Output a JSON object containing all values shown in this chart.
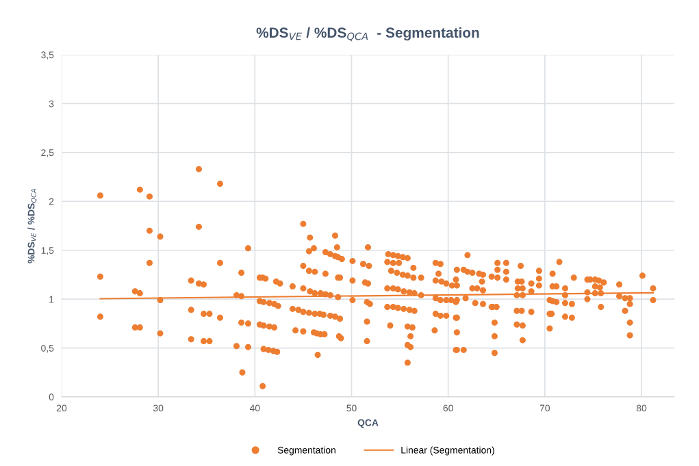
{
  "chart_data": {
    "type": "scatter",
    "title": "%DS$_{VE}$ / %DS$_{QCA}$  - Segmentation",
    "xlabel": "QCA",
    "ylabel": "%DS$_{VE}$ / %DS$_{QCA}$",
    "xlim": [
      20,
      83.4
    ],
    "xticks": [
      20,
      30,
      40,
      50,
      60,
      70,
      80
    ],
    "ylim": [
      0,
      3.5
    ],
    "yticks": [
      0,
      {
        "value": 0.5,
        "label": "0,5"
      },
      1,
      {
        "value": 1.5,
        "label": "1,5"
      },
      2,
      {
        "value": 2.5,
        "label": "2,5"
      },
      3,
      {
        "value": 3.5,
        "label": "3,5"
      }
    ],
    "grid": true,
    "legend": "bottom",
    "series": [
      {
        "name": "Segmentation",
        "marker": "circle",
        "color": "#ed7d31",
        "x": [
          24.0,
          24.0,
          24.0,
          27.6,
          28.1,
          27.6,
          28.1,
          28.1,
          29.1,
          29.1,
          29.1,
          30.2,
          30.2,
          30.2,
          33.4,
          33.4,
          33.4,
          34.2,
          34.2,
          34.2,
          34.7,
          34.7,
          34.7,
          35.3,
          35.3,
          36.4,
          36.4,
          36.4,
          38.1,
          38.1,
          38.6,
          38.6,
          38.6,
          38.7,
          39.3,
          39.3,
          39.3,
          40.5,
          40.8,
          41.1,
          40.5,
          40.9,
          41.5,
          42.0,
          42.4,
          40.5,
          40.9,
          41.5,
          42.0,
          40.9,
          41.4,
          41.9,
          42.3,
          40.8,
          42.2,
          42.6,
          43.9,
          43.9,
          44.5,
          45.0,
          45.0,
          45.0,
          45.0,
          44.2,
          45.0,
          45.7,
          46.1,
          45.6,
          45.6,
          46.2,
          45.7,
          46.2,
          45.6,
          46.2,
          46.7,
          47.1,
          46.1,
          46.4,
          46.8,
          47.2,
          46.5,
          47.3,
          47.8,
          48.3,
          48.6,
          49.0,
          47.3,
          48.3,
          48.5,
          46.8,
          47.3,
          47.8,
          47.8,
          48.3,
          48.8,
          48.6,
          48.8,
          48.6,
          48.7,
          48.9,
          50.1,
          50.1,
          50.1,
          51.2,
          51.4,
          51.7,
          51.6,
          51.9,
          51.6,
          51.6,
          51.7,
          51.8,
          53.8,
          54.3,
          54.8,
          55.3,
          55.8,
          53.7,
          54.3,
          54.9,
          54.1,
          54.7,
          55.3,
          55.8,
          56.4,
          56.4,
          57.2,
          53.7,
          54.3,
          54.8,
          55.4,
          56.0,
          56.5,
          53.7,
          54.3,
          54.8,
          55.4,
          56.0,
          56.5,
          54.0,
          55.8,
          56.3,
          56.1,
          56.1,
          55.8,
          55.8,
          57.2,
          58.7,
          59.2,
          59.0,
          58.7,
          59.3,
          59.8,
          58.7,
          59.2,
          59.8,
          58.7,
          59.2,
          59.8,
          58.6,
          60.8,
          60.8,
          60.8,
          60.8,
          62.0,
          60.9,
          61.6,
          62.0,
          62.5,
          63.2,
          63.6,
          64.5,
          62.5,
          63.0,
          63.5,
          63.6,
          60.4,
          60.9,
          60.3,
          60.9,
          60.9,
          60.9,
          60.9,
          61.6,
          62.8,
          63.6,
          64.5,
          61.8,
          65.1,
          65.1,
          65.1,
          66.0,
          66.0,
          66.0,
          67.5,
          67.2,
          67.6,
          67.2,
          67.7,
          67.1,
          67.7,
          68.6,
          68.6,
          69.4,
          69.4,
          69.4,
          70.8,
          70.8,
          71.2,
          71.5,
          72.1,
          72.1,
          73.0,
          74.4,
          74.7,
          74.4,
          75.2,
          75.6,
          76.1,
          75.2,
          75.7,
          75.2,
          75.8,
          77.7,
          80.1,
          81.2,
          64.6,
          65.0,
          64.8,
          64.8,
          64.8,
          67.1,
          67.6,
          67.1,
          67.7,
          67.7,
          68.6,
          70.5,
          70.8,
          71.2,
          70.5,
          70.7,
          70.5,
          72.1,
          72.8,
          72.1,
          72.8,
          74.4,
          75.8,
          77.7,
          78.3,
          78.8,
          78.8,
          78.3,
          78.8,
          78.8,
          81.2
        ],
        "values": [
          2.06,
          1.23,
          0.82,
          1.08,
          1.06,
          0.71,
          0.71,
          2.12,
          2.05,
          1.7,
          1.37,
          1.64,
          0.99,
          0.65,
          1.19,
          0.89,
          0.59,
          2.33,
          1.74,
          1.16,
          1.15,
          0.85,
          0.57,
          0.85,
          0.57,
          2.18,
          1.37,
          0.81,
          1.04,
          0.52,
          1.27,
          1.03,
          0.76,
          0.25,
          1.52,
          0.75,
          0.51,
          1.22,
          1.22,
          1.21,
          0.98,
          0.97,
          0.96,
          0.95,
          0.93,
          0.74,
          0.73,
          0.72,
          0.71,
          0.49,
          0.48,
          0.47,
          0.46,
          0.11,
          1.18,
          1.16,
          1.13,
          0.9,
          0.89,
          1.34,
          1.11,
          0.87,
          0.67,
          0.68,
          1.77,
          1.63,
          1.52,
          1.49,
          1.29,
          1.28,
          1.08,
          1.06,
          0.86,
          0.85,
          0.85,
          0.84,
          0.66,
          0.65,
          0.64,
          0.64,
          0.43,
          1.48,
          1.46,
          1.44,
          1.43,
          1.41,
          1.26,
          1.65,
          1.53,
          1.06,
          1.05,
          1.04,
          0.83,
          0.82,
          0.8,
          1.22,
          1.22,
          1.02,
          0.62,
          0.6,
          1.39,
          1.19,
          0.99,
          1.36,
          1.17,
          1.16,
          0.97,
          0.95,
          0.77,
          0.57,
          1.53,
          1.34,
          1.46,
          1.45,
          1.44,
          1.43,
          1.42,
          1.38,
          1.37,
          1.37,
          1.29,
          1.27,
          1.25,
          1.24,
          1.22,
          1.32,
          1.22,
          1.11,
          1.11,
          1.1,
          1.08,
          1.07,
          1.06,
          0.92,
          0.92,
          0.91,
          0.9,
          0.89,
          0.88,
          0.73,
          0.72,
          0.71,
          0.62,
          0.51,
          0.53,
          0.35,
          1.04,
          1.37,
          1.36,
          1.26,
          1.19,
          1.18,
          1.16,
          1.01,
          0.99,
          0.99,
          0.85,
          0.83,
          0.83,
          0.68,
          1.2,
          0.97,
          0.81,
          0.48,
          1.45,
          1.3,
          1.3,
          1.28,
          1.27,
          1.26,
          1.25,
          1.23,
          1.11,
          1.11,
          1.18,
          1.09,
          1.14,
          1.14,
          0.99,
          0.99,
          0.81,
          0.66,
          0.48,
          0.48,
          0.96,
          0.95,
          0.92,
          1.01,
          1.37,
          1.3,
          1.22,
          1.37,
          1.28,
          1.2,
          1.34,
          1.18,
          1.18,
          1.11,
          1.11,
          1.04,
          1.04,
          1.16,
          1.08,
          1.29,
          1.21,
          1.14,
          1.26,
          1.13,
          1.13,
          1.38,
          1.11,
          1.04,
          1.22,
          1.2,
          1.2,
          1.07,
          1.2,
          1.19,
          1.17,
          1.13,
          1.12,
          1.06,
          1.06,
          1.15,
          1.24,
          1.11,
          0.92,
          0.92,
          0.76,
          0.62,
          0.45,
          0.88,
          0.88,
          0.74,
          0.73,
          0.58,
          0.87,
          0.99,
          0.98,
          0.97,
          0.85,
          0.85,
          0.7,
          0.96,
          0.95,
          0.82,
          0.81,
          1.0,
          0.92,
          1.03,
          1.01,
          1.01,
          0.95,
          0.88,
          0.76,
          0.63,
          0.99
        ]
      },
      {
        "name": "Linear (Segmentation)",
        "type": "line",
        "marker": "none",
        "color": "#ed7d31",
        "x": [
          24.0,
          81.2
        ],
        "values": [
          1.005,
          1.065
        ]
      }
    ]
  }
}
